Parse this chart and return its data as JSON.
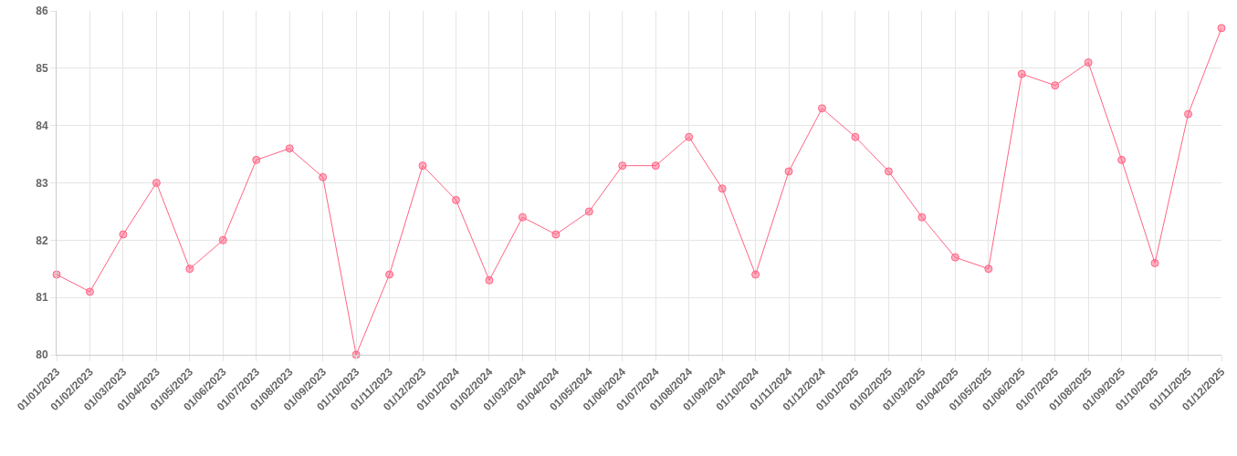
{
  "chart_data": {
    "type": "line",
    "categories": [
      "01/01/2023",
      "01/02/2023",
      "01/03/2023",
      "01/04/2023",
      "01/05/2023",
      "01/06/2023",
      "01/07/2023",
      "01/08/2023",
      "01/09/2023",
      "01/10/2023",
      "01/11/2023",
      "01/12/2023",
      "01/01/2024",
      "01/02/2024",
      "01/03/2024",
      "01/04/2024",
      "01/05/2024",
      "01/06/2024",
      "01/07/2024",
      "01/08/2024",
      "01/09/2024",
      "01/10/2024",
      "01/11/2024",
      "01/12/2024",
      "01/01/2025",
      "01/02/2025",
      "01/03/2025",
      "01/04/2025",
      "01/05/2025",
      "01/06/2025",
      "01/07/2025",
      "01/08/2025",
      "01/09/2025",
      "01/10/2025",
      "01/11/2025",
      "01/12/2025"
    ],
    "series": [
      {
        "color": "#ff6384",
        "values": [
          81.4,
          81.1,
          82.1,
          83.0,
          81.5,
          82.0,
          83.4,
          83.6,
          83.1,
          80.0,
          81.4,
          83.3,
          82.7,
          81.3,
          82.4,
          82.1,
          82.5,
          83.3,
          83.3,
          83.8,
          82.9,
          81.4,
          83.2,
          84.3,
          83.8,
          83.2,
          82.4,
          81.7,
          81.5,
          84.9,
          84.7,
          85.1,
          83.4,
          81.6,
          84.2,
          85.7
        ]
      }
    ],
    "ylim": [
      80,
      86
    ],
    "yticks": [
      80,
      81,
      82,
      83,
      84,
      85,
      86
    ],
    "grid": true,
    "marker": "circle",
    "line_style": "solid"
  }
}
